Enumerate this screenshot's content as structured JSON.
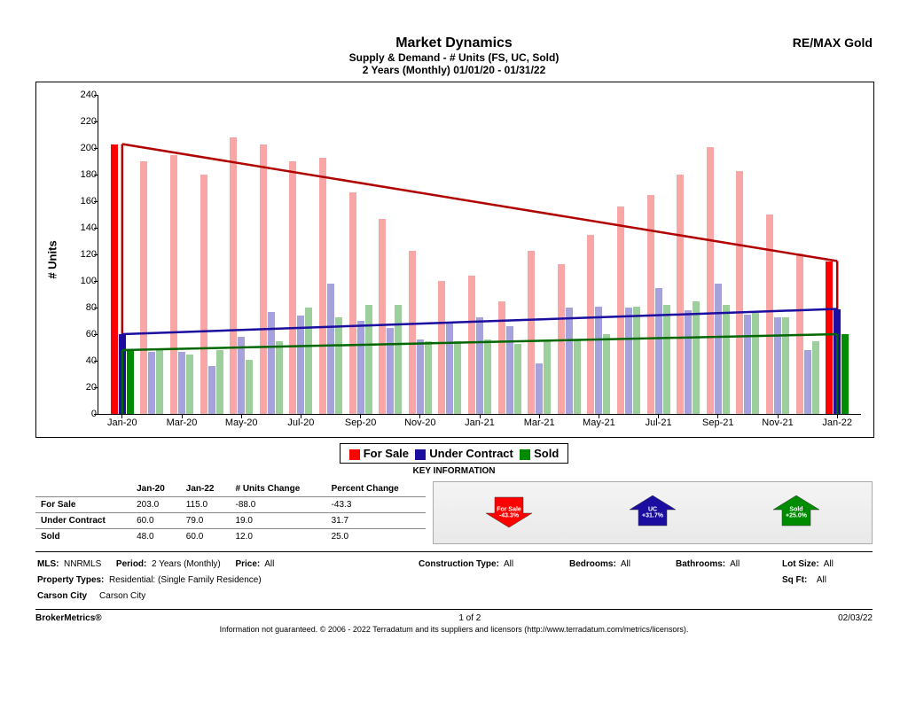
{
  "header": {
    "title": "Market Dynamics",
    "subtitle1": "Supply & Demand - # Units (FS, UC, Sold)",
    "subtitle2": "2 Years (Monthly) 01/01/20 - 01/31/22",
    "brand": "RE/MAX Gold"
  },
  "chart": {
    "type": "grouped-bar-with-trend-lines",
    "ylabel": "# Units",
    "ylim": [
      0,
      240
    ],
    "yticks": [
      0,
      20,
      40,
      60,
      80,
      100,
      120,
      140,
      160,
      180,
      200,
      220,
      240
    ],
    "xticks_shown": [
      "Jan-20",
      "Mar-20",
      "May-20",
      "Jul-20",
      "Sep-20",
      "Nov-20",
      "Jan-21",
      "Mar-21",
      "May-21",
      "Jul-21",
      "Sep-21",
      "Nov-21",
      "Jan-22"
    ],
    "months": [
      "Jan-20",
      "Feb-20",
      "Mar-20",
      "Apr-20",
      "May-20",
      "Jun-20",
      "Jul-20",
      "Aug-20",
      "Sep-20",
      "Oct-20",
      "Nov-20",
      "Dec-20",
      "Jan-21",
      "Feb-21",
      "Mar-21",
      "Apr-21",
      "May-21",
      "Jun-21",
      "Jul-21",
      "Aug-21",
      "Sep-21",
      "Oct-21",
      "Nov-21",
      "Dec-21",
      "Jan-22"
    ],
    "series": {
      "for_sale": {
        "label": "For Sale",
        "color": "#ff0000",
        "color_faded": "#f8a6a6",
        "values": [
          203,
          190,
          195,
          180,
          208,
          203,
          190,
          193,
          167,
          147,
          123,
          100,
          104,
          85,
          123,
          113,
          135,
          156,
          165,
          180,
          201,
          183,
          150,
          121,
          115
        ]
      },
      "under_contract": {
        "label": "Under Contract",
        "color": "#1a0da0",
        "color_faded": "#a6a2dc",
        "values": [
          60,
          47,
          47,
          36,
          58,
          77,
          74,
          98,
          70,
          65,
          56,
          68,
          73,
          66,
          38,
          80,
          81,
          80,
          95,
          78,
          98,
          75,
          73,
          48,
          79
        ]
      },
      "sold": {
        "label": "Sold",
        "color": "#008c00",
        "color_faded": "#9ccf9c",
        "values": [
          48,
          48,
          45,
          48,
          41,
          55,
          80,
          73,
          82,
          82,
          55,
          55,
          56,
          53,
          55,
          56,
          60,
          81,
          82,
          85,
          82,
          76,
          73,
          55,
          60
        ]
      }
    },
    "trend_lines": {
      "for_sale": {
        "y1": 203,
        "y2": 115,
        "color": "#b00000"
      },
      "under_contract": {
        "y1": 60,
        "y2": 79,
        "color": "#1a0da0"
      },
      "sold": {
        "y1": 48,
        "y2": 60,
        "color": "#006600"
      }
    },
    "background_color": "#ffffff",
    "tick_color": "#000000"
  },
  "legend": [
    {
      "label": "For Sale",
      "color": "#ff0000"
    },
    {
      "label": "Under Contract",
      "color": "#1a0da0"
    },
    {
      "label": "Sold",
      "color": "#008c00"
    }
  ],
  "key_title": "KEY INFORMATION",
  "info_table": {
    "columns": [
      "",
      "Jan-20",
      "Jan-22",
      "# Units Change",
      "Percent Change"
    ],
    "rows": [
      [
        "For Sale",
        "203.0",
        "115.0",
        "-88.0",
        "-43.3"
      ],
      [
        "Under Contract",
        "60.0",
        "79.0",
        "19.0",
        "31.7"
      ],
      [
        "Sold",
        "48.0",
        "60.0",
        "12.0",
        "25.0"
      ]
    ]
  },
  "arrows": [
    {
      "direction": "down",
      "color": "#ff0000",
      "line1": "For Sale",
      "line2": "-43.3%"
    },
    {
      "direction": "up",
      "color": "#1a0da0",
      "line1": "UC",
      "line2": "+31.7%"
    },
    {
      "direction": "up",
      "color": "#008c00",
      "line1": "Sold",
      "line2": "+25.0%"
    }
  ],
  "filters": {
    "mls_label": "MLS:",
    "mls_value": "NNRMLS",
    "period_label": "Period:",
    "period_value": "2 Years (Monthly)",
    "price_label": "Price:",
    "price_value": "All",
    "construction_label": "Construction Type:",
    "construction_value": "All",
    "bedrooms_label": "Bedrooms:",
    "bedrooms_value": "All",
    "bathrooms_label": "Bathrooms:",
    "bathrooms_value": "All",
    "lot_label": "Lot Size:",
    "lot_value": "All",
    "proptypes_label": "Property Types:",
    "proptypes_value": "Residential: (Single Family Residence)",
    "sqft_label": "Sq Ft:",
    "sqft_value": "All",
    "region_label": "Carson City",
    "region_value": "Carson City"
  },
  "footer": {
    "left": "BrokerMetrics®",
    "center": "1 of 2",
    "right": "02/03/22",
    "disclaimer": "Information not guaranteed.  © 2006 - 2022 Terradatum and its suppliers and licensors (http://www.terradatum.com/metrics/licensors)."
  }
}
